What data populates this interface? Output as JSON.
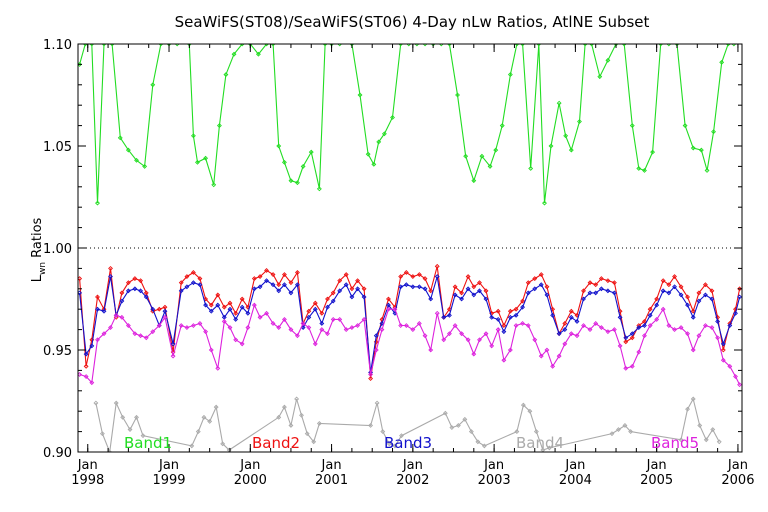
{
  "chart_data": {
    "type": "line",
    "title": "SeaWiFS(ST08)/SeaWiFS(ST06) 4-Day nLw Ratios, AtlNE Subset",
    "ylabel": "L",
    "ylabel_sub": "wn",
    "ylabel_rest": " Ratios",
    "xlim": [
      1997.88,
      2006.05
    ],
    "ylim": [
      0.9,
      1.1
    ],
    "yticks": [
      "0.90",
      "0.95",
      "1.00",
      "1.05",
      "1.10"
    ],
    "xtick_positions": [
      1998,
      1999,
      2000,
      2001,
      2002,
      2003,
      2004,
      2005,
      2006
    ],
    "xtick_month": "Jan",
    "xtick_years": [
      "1998",
      "1999",
      "2000",
      "2001",
      "2002",
      "2003",
      "2004",
      "2005",
      "2006"
    ],
    "reference_line": 1.0,
    "grid": false,
    "legend_position": "bottom, inside",
    "series": [
      {
        "name": "Band1",
        "color": "#22dd22",
        "x": [
          1997.9,
          1997.97,
          1998.05,
          1998.12,
          1998.2,
          1998.3,
          1998.4,
          1998.5,
          1998.6,
          1998.7,
          1998.8,
          1998.9,
          1999.0,
          1999.1,
          1999.25,
          1999.3,
          1999.35,
          1999.45,
          1999.55,
          1999.62,
          1999.7,
          1999.8,
          1999.9,
          2000.0,
          2000.1,
          2000.2,
          2000.28,
          2000.35,
          2000.42,
          2000.5,
          2000.58,
          2000.65,
          2000.75,
          2000.85,
          2000.92,
          2001.0,
          2001.1,
          2001.25,
          2001.35,
          2001.45,
          2001.52,
          2001.58,
          2001.65,
          2001.75,
          2001.85,
          2001.95,
          2002.05,
          2002.15,
          2002.25,
          2002.35,
          2002.45,
          2002.55,
          2002.65,
          2002.75,
          2002.85,
          2002.95,
          2003.02,
          2003.1,
          2003.2,
          2003.28,
          2003.35,
          2003.45,
          2003.55,
          2003.62,
          2003.7,
          2003.8,
          2003.88,
          2003.95,
          2004.05,
          2004.12,
          2004.2,
          2004.3,
          2004.4,
          2004.5,
          2004.6,
          2004.7,
          2004.78,
          2004.85,
          2004.95,
          2005.05,
          2005.15,
          2005.25,
          2005.35,
          2005.45,
          2005.55,
          2005.62,
          2005.7,
          2005.8,
          2005.88,
          2005.95
        ],
        "y": [
          1.09,
          1.1,
          1.1,
          1.022,
          1.1,
          1.1,
          1.054,
          1.048,
          1.043,
          1.04,
          1.08,
          1.1,
          1.1,
          1.1,
          1.1,
          1.055,
          1.042,
          1.044,
          1.031,
          1.06,
          1.085,
          1.095,
          1.1,
          1.1,
          1.095,
          1.1,
          1.1,
          1.05,
          1.042,
          1.033,
          1.032,
          1.04,
          1.047,
          1.029,
          1.1,
          1.1,
          1.1,
          1.1,
          1.075,
          1.046,
          1.041,
          1.052,
          1.056,
          1.064,
          1.1,
          1.1,
          1.1,
          1.1,
          1.1,
          1.1,
          1.1,
          1.075,
          1.045,
          1.033,
          1.045,
          1.04,
          1.048,
          1.06,
          1.085,
          1.1,
          1.1,
          1.039,
          1.1,
          1.022,
          1.05,
          1.071,
          1.055,
          1.048,
          1.062,
          1.1,
          1.1,
          1.084,
          1.092,
          1.1,
          1.1,
          1.06,
          1.039,
          1.038,
          1.047,
          1.1,
          1.1,
          1.1,
          1.06,
          1.049,
          1.048,
          1.038,
          1.057,
          1.091,
          1.1,
          1.1
        ]
      },
      {
        "name": "Band2",
        "color": "#ee1111",
        "x": [
          1997.9,
          1997.98,
          1998.05,
          1998.12,
          1998.2,
          1998.28,
          1998.35,
          1998.42,
          1998.5,
          1998.58,
          1998.65,
          1998.72,
          1998.8,
          1998.88,
          1998.95,
          1999.05,
          1999.15,
          1999.22,
          1999.3,
          1999.38,
          1999.45,
          1999.52,
          1999.6,
          1999.68,
          1999.75,
          1999.82,
          1999.9,
          1999.97,
          2000.05,
          2000.12,
          2000.2,
          2000.28,
          2000.35,
          2000.42,
          2000.5,
          2000.58,
          2000.65,
          2000.72,
          2000.8,
          2000.88,
          2000.95,
          2001.02,
          2001.1,
          2001.18,
          2001.25,
          2001.32,
          2001.4,
          2001.48,
          2001.55,
          2001.62,
          2001.7,
          2001.78,
          2001.85,
          2001.92,
          2002.0,
          2002.08,
          2002.15,
          2002.22,
          2002.3,
          2002.38,
          2002.45,
          2002.52,
          2002.6,
          2002.68,
          2002.75,
          2002.82,
          2002.9,
          2002.97,
          2003.05,
          2003.12,
          2003.2,
          2003.27,
          2003.35,
          2003.42,
          2003.5,
          2003.58,
          2003.65,
          2003.72,
          2003.8,
          2003.87,
          2003.95,
          2004.02,
          2004.1,
          2004.18,
          2004.25,
          2004.32,
          2004.4,
          2004.48,
          2004.55,
          2004.62,
          2004.7,
          2004.78,
          2004.85,
          2004.92,
          2005.0,
          2005.08,
          2005.15,
          2005.22,
          2005.3,
          2005.38,
          2005.45,
          2005.52,
          2005.6,
          2005.68,
          2005.75,
          2005.82,
          2005.9,
          2005.97,
          2006.02
        ],
        "y": [
          0.985,
          0.942,
          0.955,
          0.976,
          0.97,
          0.99,
          0.966,
          0.978,
          0.983,
          0.985,
          0.984,
          0.978,
          0.969,
          0.97,
          0.971,
          0.949,
          0.983,
          0.986,
          0.988,
          0.985,
          0.975,
          0.972,
          0.977,
          0.971,
          0.973,
          0.968,
          0.975,
          0.971,
          0.985,
          0.986,
          0.989,
          0.987,
          0.982,
          0.987,
          0.983,
          0.988,
          0.963,
          0.969,
          0.973,
          0.968,
          0.975,
          0.978,
          0.984,
          0.987,
          0.98,
          0.984,
          0.98,
          0.936,
          0.954,
          0.965,
          0.975,
          0.971,
          0.986,
          0.988,
          0.986,
          0.987,
          0.985,
          0.979,
          0.991,
          0.966,
          0.97,
          0.981,
          0.978,
          0.986,
          0.981,
          0.983,
          0.979,
          0.968,
          0.969,
          0.962,
          0.969,
          0.97,
          0.974,
          0.983,
          0.985,
          0.987,
          0.981,
          0.97,
          0.958,
          0.963,
          0.969,
          0.967,
          0.979,
          0.983,
          0.982,
          0.985,
          0.984,
          0.983,
          0.969,
          0.954,
          0.956,
          0.962,
          0.964,
          0.97,
          0.975,
          0.984,
          0.982,
          0.986,
          0.981,
          0.976,
          0.969,
          0.978,
          0.982,
          0.979,
          0.966,
          0.95,
          0.963,
          0.97,
          0.98
        ],
        "offset": 0.0
      },
      {
        "name": "Band3",
        "color": "#1111cc",
        "x": [
          1997.9,
          1997.98,
          1998.05,
          1998.12,
          1998.2,
          1998.28,
          1998.35,
          1998.42,
          1998.5,
          1998.58,
          1998.65,
          1998.72,
          1998.8,
          1998.88,
          1998.95,
          1999.05,
          1999.15,
          1999.22,
          1999.3,
          1999.38,
          1999.45,
          1999.52,
          1999.6,
          1999.68,
          1999.75,
          1999.82,
          1999.9,
          1999.97,
          2000.05,
          2000.12,
          2000.2,
          2000.28,
          2000.35,
          2000.42,
          2000.5,
          2000.58,
          2000.65,
          2000.72,
          2000.8,
          2000.88,
          2000.95,
          2001.02,
          2001.1,
          2001.18,
          2001.25,
          2001.32,
          2001.4,
          2001.48,
          2001.55,
          2001.62,
          2001.7,
          2001.78,
          2001.85,
          2001.92,
          2002.0,
          2002.08,
          2002.15,
          2002.22,
          2002.3,
          2002.38,
          2002.45,
          2002.52,
          2002.6,
          2002.68,
          2002.75,
          2002.82,
          2002.9,
          2002.97,
          2003.05,
          2003.12,
          2003.2,
          2003.27,
          2003.35,
          2003.42,
          2003.5,
          2003.58,
          2003.65,
          2003.72,
          2003.8,
          2003.87,
          2003.95,
          2004.02,
          2004.1,
          2004.18,
          2004.25,
          2004.32,
          2004.4,
          2004.48,
          2004.55,
          2004.62,
          2004.7,
          2004.78,
          2004.85,
          2004.92,
          2005.0,
          2005.08,
          2005.15,
          2005.22,
          2005.3,
          2005.38,
          2005.45,
          2005.52,
          2005.6,
          2005.68,
          2005.75,
          2005.82,
          2005.9,
          2005.97,
          2006.02
        ],
        "y": [
          0.978,
          0.948,
          0.952,
          0.97,
          0.969,
          0.986,
          0.967,
          0.974,
          0.979,
          0.98,
          0.979,
          0.976,
          0.97,
          0.962,
          0.969,
          0.953,
          0.979,
          0.981,
          0.983,
          0.982,
          0.972,
          0.969,
          0.972,
          0.966,
          0.97,
          0.965,
          0.971,
          0.968,
          0.98,
          0.981,
          0.984,
          0.982,
          0.979,
          0.982,
          0.978,
          0.982,
          0.961,
          0.966,
          0.97,
          0.963,
          0.971,
          0.974,
          0.979,
          0.982,
          0.976,
          0.98,
          0.976,
          0.939,
          0.957,
          0.963,
          0.972,
          0.968,
          0.981,
          0.982,
          0.981,
          0.981,
          0.98,
          0.975,
          0.986,
          0.966,
          0.967,
          0.977,
          0.975,
          0.98,
          0.977,
          0.979,
          0.975,
          0.966,
          0.965,
          0.959,
          0.966,
          0.967,
          0.971,
          0.978,
          0.98,
          0.982,
          0.977,
          0.967,
          0.958,
          0.96,
          0.966,
          0.964,
          0.975,
          0.978,
          0.978,
          0.98,
          0.979,
          0.978,
          0.966,
          0.956,
          0.958,
          0.961,
          0.962,
          0.967,
          0.972,
          0.979,
          0.978,
          0.981,
          0.977,
          0.972,
          0.966,
          0.974,
          0.977,
          0.975,
          0.964,
          0.953,
          0.962,
          0.968,
          0.976
        ]
      },
      {
        "name": "Band4",
        "color": "#aaaaaa",
        "x": [
          1998.1,
          1998.18,
          1998.27,
          1998.35,
          1998.43,
          1998.52,
          1998.6,
          1998.68,
          1999.28,
          1999.36,
          1999.43,
          1999.5,
          1999.58,
          1999.66,
          1999.74,
          2000.35,
          2000.42,
          2000.5,
          2000.57,
          2000.63,
          2000.7,
          2000.78,
          2000.85,
          2001.48,
          2001.56,
          2001.63,
          2001.71,
          2001.78,
          2001.86,
          2002.4,
          2002.48,
          2002.56,
          2002.64,
          2002.72,
          2002.8,
          2002.88,
          2003.28,
          2003.36,
          2003.44,
          2003.52,
          2003.6,
          2003.68,
          2004.45,
          2004.53,
          2004.61,
          2004.68,
          2005.3,
          2005.38,
          2005.45,
          2005.53,
          2005.61,
          2005.69,
          2005.77
        ],
        "y": [
          0.924,
          0.909,
          0.9,
          0.924,
          0.917,
          0.911,
          0.917,
          0.908,
          0.903,
          0.91,
          0.917,
          0.915,
          0.922,
          0.904,
          0.901,
          0.917,
          0.922,
          0.913,
          0.926,
          0.918,
          0.909,
          0.905,
          0.914,
          0.913,
          0.924,
          0.91,
          0.904,
          0.903,
          0.908,
          0.919,
          0.912,
          0.913,
          0.916,
          0.91,
          0.905,
          0.903,
          0.91,
          0.923,
          0.92,
          0.91,
          0.901,
          0.902,
          0.909,
          0.911,
          0.913,
          0.91,
          0.906,
          0.921,
          0.926,
          0.913,
          0.906,
          0.911,
          0.905
        ]
      },
      {
        "name": "Band5",
        "color": "#dd22dd",
        "x": [
          1997.9,
          1997.98,
          1998.05,
          1998.12,
          1998.2,
          1998.28,
          1998.35,
          1998.42,
          1998.5,
          1998.58,
          1998.65,
          1998.72,
          1998.8,
          1998.88,
          1998.95,
          1999.05,
          1999.15,
          1999.22,
          1999.3,
          1999.38,
          1999.45,
          1999.52,
          1999.6,
          1999.68,
          1999.75,
          1999.82,
          1999.9,
          1999.97,
          2000.05,
          2000.12,
          2000.2,
          2000.28,
          2000.35,
          2000.42,
          2000.5,
          2000.58,
          2000.65,
          2000.72,
          2000.8,
          2000.88,
          2000.95,
          2001.02,
          2001.1,
          2001.18,
          2001.25,
          2001.32,
          2001.4,
          2001.48,
          2001.55,
          2001.62,
          2001.7,
          2001.78,
          2001.85,
          2001.92,
          2002.0,
          2002.08,
          2002.15,
          2002.22,
          2002.3,
          2002.38,
          2002.45,
          2002.52,
          2002.6,
          2002.68,
          2002.75,
          2002.82,
          2002.9,
          2002.97,
          2003.05,
          2003.12,
          2003.2,
          2003.27,
          2003.35,
          2003.42,
          2003.5,
          2003.58,
          2003.65,
          2003.72,
          2003.8,
          2003.87,
          2003.95,
          2004.02,
          2004.1,
          2004.18,
          2004.25,
          2004.32,
          2004.4,
          2004.48,
          2004.55,
          2004.62,
          2004.7,
          2004.78,
          2004.85,
          2004.92,
          2005.0,
          2005.08,
          2005.15,
          2005.22,
          2005.3,
          2005.38,
          2005.45,
          2005.52,
          2005.6,
          2005.68,
          2005.75,
          2005.82,
          2005.9,
          2005.97,
          2006.02
        ],
        "y": [
          0.938,
          0.937,
          0.934,
          0.955,
          0.958,
          0.961,
          0.967,
          0.966,
          0.962,
          0.958,
          0.957,
          0.956,
          0.959,
          0.962,
          0.966,
          0.947,
          0.962,
          0.961,
          0.962,
          0.963,
          0.959,
          0.95,
          0.941,
          0.964,
          0.961,
          0.955,
          0.953,
          0.961,
          0.972,
          0.966,
          0.968,
          0.963,
          0.961,
          0.965,
          0.96,
          0.957,
          0.963,
          0.961,
          0.953,
          0.96,
          0.958,
          0.965,
          0.965,
          0.96,
          0.961,
          0.962,
          0.965,
          0.938,
          0.95,
          0.96,
          0.97,
          0.97,
          0.962,
          0.962,
          0.96,
          0.963,
          0.957,
          0.95,
          0.968,
          0.955,
          0.958,
          0.962,
          0.958,
          0.955,
          0.948,
          0.955,
          0.958,
          0.952,
          0.96,
          0.945,
          0.95,
          0.962,
          0.963,
          0.962,
          0.955,
          0.947,
          0.95,
          0.942,
          0.947,
          0.953,
          0.958,
          0.957,
          0.962,
          0.96,
          0.963,
          0.961,
          0.959,
          0.96,
          0.952,
          0.941,
          0.942,
          0.949,
          0.957,
          0.962,
          0.965,
          0.97,
          0.962,
          0.96,
          0.961,
          0.958,
          0.95,
          0.957,
          0.962,
          0.961,
          0.956,
          0.945,
          0.942,
          0.937,
          0.933
        ]
      }
    ]
  }
}
